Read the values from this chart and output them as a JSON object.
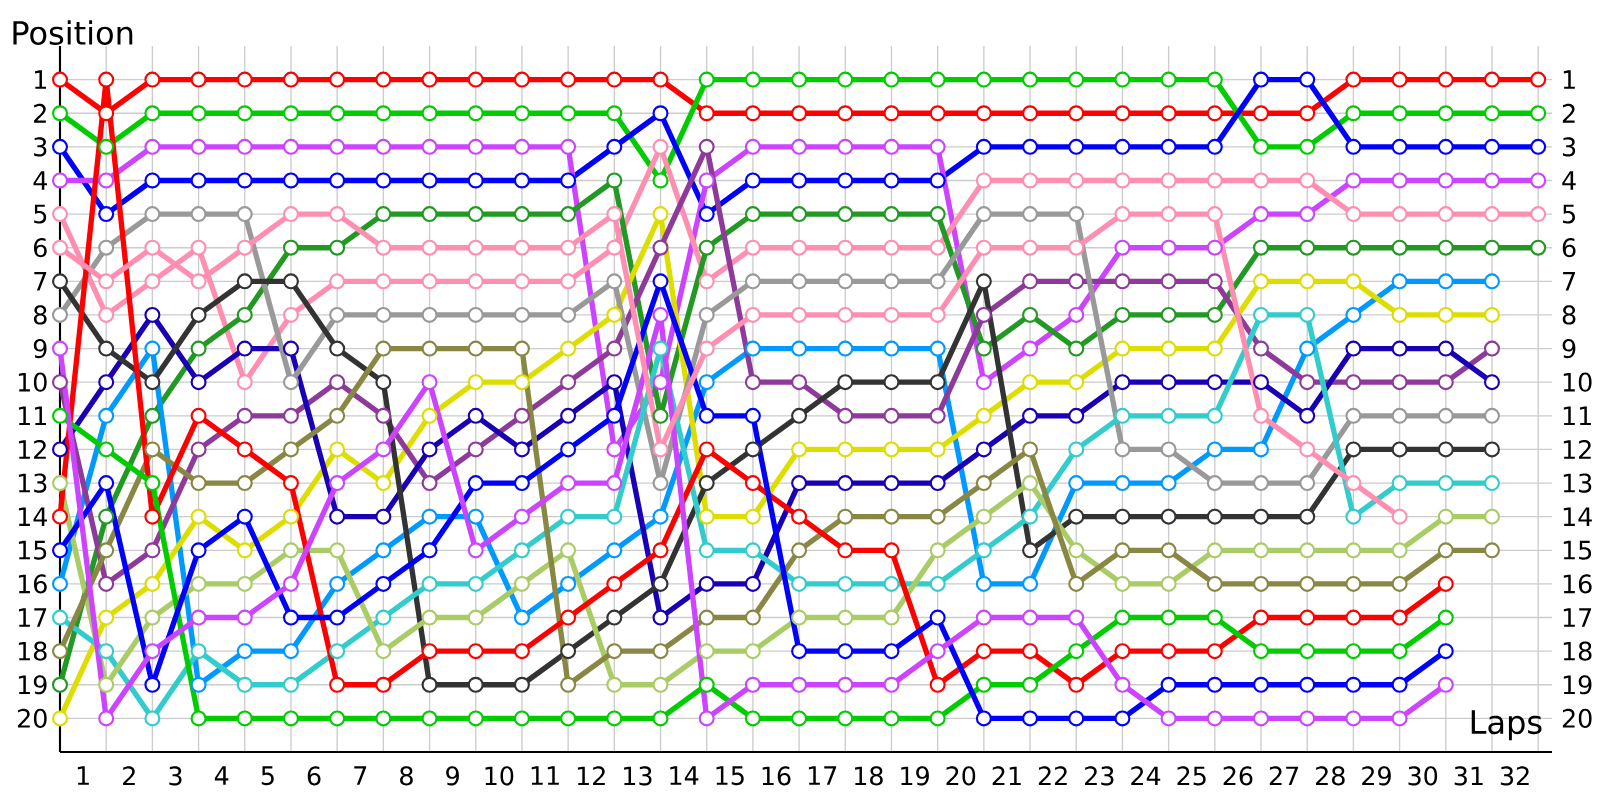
{
  "chart_data": {
    "type": "line",
    "xlabel": "Laps",
    "ylabel": "Position",
    "x": [
      0,
      1,
      2,
      3,
      4,
      5,
      6,
      7,
      8,
      9,
      10,
      11,
      12,
      13,
      14,
      15,
      16,
      17,
      18,
      19,
      20,
      21,
      22,
      23,
      24,
      25,
      26,
      27,
      28,
      29,
      30,
      31,
      32
    ],
    "xlim": [
      0,
      32.3
    ],
    "xticks": [
      {
        "value": 0,
        "label": null
      },
      {
        "value": 0.5,
        "label": "1"
      },
      {
        "value": 1,
        "label": null
      },
      {
        "value": 1.5,
        "label": "2"
      },
      {
        "value": 2,
        "label": null
      },
      {
        "value": 2.5,
        "label": "3"
      },
      {
        "value": 3,
        "label": null
      },
      {
        "value": 3.5,
        "label": "4"
      },
      {
        "value": 4,
        "label": null
      },
      {
        "value": 4.5,
        "label": "5"
      },
      {
        "value": 5,
        "label": null
      },
      {
        "value": 5.5,
        "label": "6"
      },
      {
        "value": 6,
        "label": null
      },
      {
        "value": 6.5,
        "label": "7"
      },
      {
        "value": 7,
        "label": null
      },
      {
        "value": 7.5,
        "label": "8"
      },
      {
        "value": 8,
        "label": null
      },
      {
        "value": 8.5,
        "label": "9"
      },
      {
        "value": 9,
        "label": null
      },
      {
        "value": 9.5,
        "label": "10"
      },
      {
        "value": 10,
        "label": null
      },
      {
        "value": 10.5,
        "label": "11"
      },
      {
        "value": 11,
        "label": null
      },
      {
        "value": 11.5,
        "label": "12"
      },
      {
        "value": 12,
        "label": null
      },
      {
        "value": 12.5,
        "label": "13"
      },
      {
        "value": 13,
        "label": null
      },
      {
        "value": 13.5,
        "label": "14"
      },
      {
        "value": 14,
        "label": null
      },
      {
        "value": 14.5,
        "label": "15"
      },
      {
        "value": 15,
        "label": null
      },
      {
        "value": 15.5,
        "label": "16"
      },
      {
        "value": 16,
        "label": null
      },
      {
        "value": 16.5,
        "label": "17"
      },
      {
        "value": 17,
        "label": null
      },
      {
        "value": 17.5,
        "label": "18"
      },
      {
        "value": 18,
        "label": null
      },
      {
        "value": 18.5,
        "label": "19"
      },
      {
        "value": 19,
        "label": null
      },
      {
        "value": 19.5,
        "label": "20"
      },
      {
        "value": 20,
        "label": null
      },
      {
        "value": 20.5,
        "label": "21"
      },
      {
        "value": 21,
        "label": null
      },
      {
        "value": 21.5,
        "label": "22"
      },
      {
        "value": 22,
        "label": null
      },
      {
        "value": 22.5,
        "label": "23"
      },
      {
        "value": 23,
        "label": null
      },
      {
        "value": 23.5,
        "label": "24"
      },
      {
        "value": 24,
        "label": null
      },
      {
        "value": 24.5,
        "label": "25"
      },
      {
        "value": 25,
        "label": null
      },
      {
        "value": 25.5,
        "label": "26"
      },
      {
        "value": 26,
        "label": null
      },
      {
        "value": 26.5,
        "label": "27"
      },
      {
        "value": 27,
        "label": null
      },
      {
        "value": 27.5,
        "label": "28"
      },
      {
        "value": 28,
        "label": null
      },
      {
        "value": 28.5,
        "label": "29"
      },
      {
        "value": 29,
        "label": null
      },
      {
        "value": 29.5,
        "label": "30"
      },
      {
        "value": 30,
        "label": null
      },
      {
        "value": 30.5,
        "label": "31"
      },
      {
        "value": 31,
        "label": null
      },
      {
        "value": 31.5,
        "label": "32"
      },
      {
        "value": 32,
        "label": null
      }
    ],
    "ylim": [
      21,
      0
    ],
    "yticks": [
      1,
      2,
      3,
      4,
      5,
      6,
      7,
      8,
      9,
      10,
      11,
      12,
      13,
      14,
      15,
      16,
      17,
      18,
      19,
      20
    ],
    "y2lim": [
      21,
      0
    ],
    "y2ticks": [
      1,
      2,
      3,
      4,
      5,
      6,
      7,
      8,
      9,
      10,
      11,
      12,
      13,
      14,
      15,
      16,
      17,
      18,
      19,
      20
    ],
    "grid": true,
    "marker": "circle",
    "line_style": "solid",
    "series": [
      {
        "color": "#ff0000",
        "values": [
          1,
          2,
          1,
          1,
          1,
          1,
          1,
          1,
          1,
          1,
          1,
          1,
          1,
          1,
          2,
          2,
          2,
          2,
          2,
          2,
          2,
          2,
          2,
          2,
          2,
          2,
          2,
          2,
          1,
          1,
          1,
          1,
          1
        ]
      },
      {
        "color": "#00cc00",
        "values": [
          2,
          3,
          2,
          2,
          2,
          2,
          2,
          2,
          2,
          2,
          2,
          2,
          2,
          4,
          1,
          1,
          1,
          1,
          1,
          1,
          1,
          1,
          1,
          1,
          1,
          1,
          3,
          3,
          2,
          2,
          2,
          2,
          2
        ]
      },
      {
        "color": "#0000ff",
        "values": [
          3,
          5,
          4,
          4,
          4,
          4,
          4,
          4,
          4,
          4,
          4,
          4,
          3,
          2,
          5,
          4,
          4,
          4,
          4,
          4,
          3,
          3,
          3,
          3,
          3,
          3,
          1,
          1,
          3,
          3,
          3,
          3,
          3
        ]
      },
      {
        "color": "#cc44ff",
        "values": [
          4,
          4,
          3,
          3,
          3,
          3,
          3,
          3,
          3,
          3,
          3,
          3,
          12,
          10,
          4,
          3,
          3,
          3,
          3,
          3,
          10,
          9,
          8,
          6,
          6,
          6,
          5,
          5,
          4,
          4,
          4,
          4,
          4
        ]
      },
      {
        "color": "#ff8fb0",
        "values": [
          5,
          8,
          7,
          6,
          10,
          8,
          7,
          7,
          7,
          7,
          7,
          7,
          6,
          3,
          7,
          6,
          6,
          6,
          6,
          6,
          4,
          4,
          4,
          4,
          4,
          4,
          4,
          4,
          5,
          5,
          5,
          5,
          5
        ]
      },
      {
        "color": "#229922",
        "values": [
          19,
          14,
          11,
          9,
          8,
          6,
          6,
          5,
          5,
          5,
          5,
          5,
          4,
          11,
          6,
          5,
          5,
          5,
          5,
          5,
          9,
          8,
          9,
          8,
          8,
          8,
          6,
          6,
          6,
          6,
          6,
          6,
          6
        ]
      },
      {
        "color": "#0099ff",
        "values": [
          16,
          11,
          9,
          19,
          18,
          18,
          16,
          15,
          14,
          14,
          17,
          16,
          15,
          14,
          10,
          9,
          9,
          9,
          9,
          9,
          16,
          16,
          13,
          13,
          13,
          12,
          12,
          9,
          8,
          7,
          7,
          7,
          null
        ]
      },
      {
        "color": "#dddd00",
        "values": [
          20,
          17,
          16,
          14,
          15,
          14,
          12,
          13,
          11,
          10,
          10,
          9,
          8,
          5,
          14,
          14,
          12,
          12,
          12,
          12,
          11,
          10,
          10,
          9,
          9,
          9,
          7,
          7,
          7,
          8,
          8,
          8,
          null
        ]
      },
      {
        "color": "#8e3a9a",
        "values": [
          10,
          16,
          15,
          12,
          11,
          11,
          10,
          11,
          13,
          12,
          11,
          10,
          9,
          6,
          3,
          10,
          10,
          11,
          11,
          11,
          8,
          7,
          7,
          7,
          7,
          7,
          9,
          10,
          10,
          10,
          10,
          9,
          null
        ]
      },
      {
        "color": "#1a00b5",
        "values": [
          12,
          10,
          8,
          10,
          9,
          9,
          14,
          14,
          12,
          11,
          12,
          11,
          10,
          17,
          16,
          16,
          13,
          13,
          13,
          13,
          12,
          11,
          11,
          10,
          10,
          10,
          10,
          11,
          9,
          9,
          9,
          10,
          null
        ]
      },
      {
        "color": "#999999",
        "values": [
          8,
          6,
          5,
          5,
          5,
          10,
          8,
          8,
          8,
          8,
          8,
          8,
          7,
          13,
          8,
          7,
          7,
          7,
          7,
          7,
          5,
          5,
          5,
          12,
          12,
          13,
          13,
          13,
          11,
          11,
          11,
          11,
          null
        ]
      },
      {
        "color": "#333333",
        "values": [
          7,
          9,
          10,
          8,
          7,
          7,
          9,
          10,
          19,
          19,
          19,
          18,
          17,
          16,
          13,
          12,
          11,
          10,
          10,
          10,
          7,
          15,
          14,
          14,
          14,
          14,
          14,
          14,
          12,
          12,
          12,
          12,
          null
        ]
      },
      {
        "color": "#33cccc",
        "values": [
          17,
          18,
          20,
          18,
          19,
          19,
          18,
          17,
          16,
          16,
          15,
          14,
          14,
          9,
          15,
          15,
          16,
          16,
          16,
          16,
          15,
          14,
          12,
          11,
          11,
          11,
          8,
          8,
          14,
          13,
          13,
          13,
          null
        ]
      },
      {
        "color": "#aacc66",
        "values": [
          13,
          19,
          17,
          16,
          16,
          15,
          15,
          18,
          17,
          17,
          16,
          15,
          19,
          19,
          18,
          18,
          17,
          17,
          17,
          15,
          14,
          13,
          15,
          16,
          16,
          15,
          15,
          15,
          15,
          15,
          14,
          14,
          null
        ]
      },
      {
        "color": "#888844",
        "values": [
          18,
          15,
          12,
          13,
          13,
          12,
          11,
          9,
          9,
          9,
          9,
          19,
          18,
          18,
          17,
          17,
          15,
          14,
          14,
          14,
          13,
          12,
          16,
          15,
          15,
          16,
          16,
          16,
          16,
          16,
          15,
          15,
          null
        ]
      },
      {
        "color": "#ff0000",
        "values": [
          14,
          1,
          14,
          11,
          12,
          13,
          19,
          19,
          18,
          18,
          18,
          17,
          16,
          15,
          12,
          13,
          14,
          15,
          15,
          19,
          18,
          18,
          19,
          18,
          18,
          18,
          17,
          17,
          17,
          17,
          16,
          null,
          null
        ]
      },
      {
        "color": "#00cc00",
        "values": [
          11,
          12,
          13,
          20,
          20,
          20,
          20,
          20,
          20,
          20,
          20,
          20,
          20,
          20,
          19,
          20,
          20,
          20,
          20,
          20,
          19,
          19,
          18,
          17,
          17,
          17,
          18,
          18,
          18,
          18,
          17,
          null,
          null
        ]
      },
      {
        "color": "#0000ff",
        "values": [
          15,
          13,
          19,
          15,
          14,
          17,
          17,
          16,
          15,
          13,
          13,
          12,
          11,
          7,
          11,
          11,
          18,
          18,
          18,
          17,
          20,
          20,
          20,
          20,
          19,
          19,
          19,
          19,
          19,
          19,
          18,
          null,
          null
        ]
      },
      {
        "color": "#cc44ff",
        "values": [
          9,
          20,
          18,
          17,
          17,
          16,
          13,
          12,
          10,
          15,
          14,
          13,
          13,
          8,
          20,
          19,
          19,
          19,
          19,
          18,
          17,
          17,
          17,
          19,
          20,
          20,
          20,
          20,
          20,
          20,
          19,
          null,
          null
        ]
      },
      {
        "color": "#ff8fb0",
        "values": [
          6,
          7,
          6,
          7,
          6,
          5,
          5,
          6,
          6,
          6,
          6,
          6,
          5,
          12,
          9,
          8,
          8,
          8,
          8,
          8,
          6,
          6,
          6,
          5,
          5,
          5,
          11,
          12,
          13,
          14,
          null,
          null,
          null
        ]
      }
    ]
  }
}
